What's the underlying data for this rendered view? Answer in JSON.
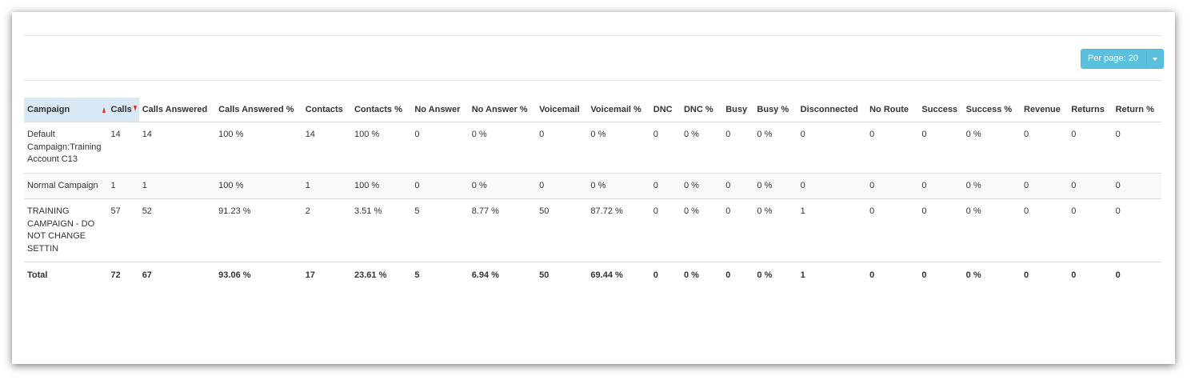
{
  "toolbar": {
    "per_page_label": "Per page: 20",
    "accent": "#5bc0de"
  },
  "table": {
    "columns": [
      "Campaign",
      "Calls",
      "Calls Answered",
      "Calls Answered %",
      "Contacts",
      "Contacts %",
      "No Answer",
      "No Answer %",
      "Voicemail",
      "Voicemail %",
      "DNC",
      "DNC %",
      "Busy",
      "Busy %",
      "Disconnected",
      "No Route",
      "Success",
      "Success %",
      "Revenue",
      "Returns",
      "Return %"
    ],
    "rows": [
      [
        "Default Campaign:Training Account C13",
        "14",
        "14",
        "100 %",
        "14",
        "100 %",
        "0",
        "0 %",
        "0",
        "0 %",
        "0",
        "0 %",
        "0",
        "0 %",
        "0",
        "0",
        "0",
        "0 %",
        "0",
        "0",
        "0"
      ],
      [
        "Normal Campaign",
        "1",
        "1",
        "100 %",
        "1",
        "100 %",
        "0",
        "0 %",
        "0",
        "0 %",
        "0",
        "0 %",
        "0",
        "0 %",
        "0",
        "0",
        "0",
        "0 %",
        "0",
        "0",
        "0"
      ],
      [
        "TRAINING CAMPAIGN - DO NOT CHANGE SETTIN",
        "57",
        "52",
        "91.23 %",
        "2",
        "3.51 %",
        "5",
        "8.77 %",
        "50",
        "87.72 %",
        "0",
        "0 %",
        "0",
        "0 %",
        "1",
        "0",
        "0",
        "0 %",
        "0",
        "0",
        "0"
      ]
    ],
    "total": [
      "Total",
      "72",
      "67",
      "93.06 %",
      "17",
      "23.61 %",
      "5",
      "6.94 %",
      "50",
      "69.44 %",
      "0",
      "0 %",
      "0",
      "0 %",
      "1",
      "0",
      "0",
      "0 %",
      "0",
      "0",
      "0"
    ],
    "sort_color": "#d9332a"
  }
}
